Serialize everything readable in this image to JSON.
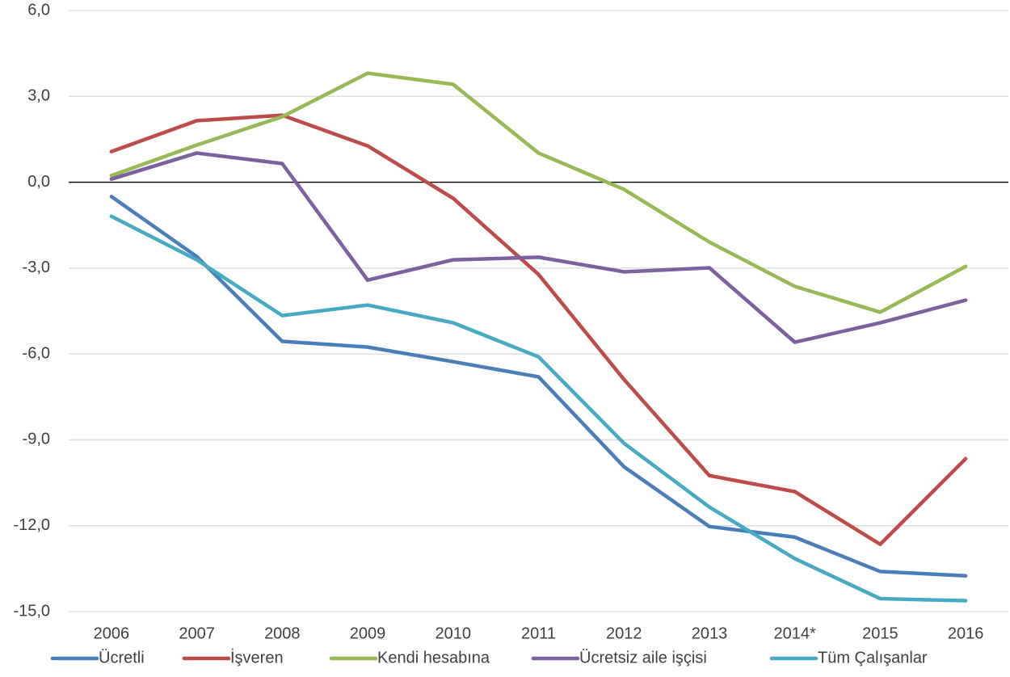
{
  "chart_data": {
    "type": "line",
    "categories": [
      "2006",
      "2007",
      "2008",
      "2009",
      "2010",
      "2011",
      "2012",
      "2013",
      "2014*",
      "2015",
      "2016"
    ],
    "series": [
      {
        "name": "Ücretli",
        "color": "#4a7ebb",
        "values": [
          -0.5,
          -2.6,
          -5.56,
          -5.76,
          -6.27,
          -6.8,
          -9.94,
          -12.03,
          -12.4,
          -13.6,
          -13.75
        ]
      },
      {
        "name": "İşveren",
        "color": "#be4b48",
        "values": [
          1.07,
          2.15,
          2.34,
          1.27,
          -0.56,
          -3.22,
          -6.89,
          -10.25,
          -10.81,
          -12.65,
          -9.66
        ]
      },
      {
        "name": "Kendi hesabına",
        "color": "#98b954",
        "values": [
          0.23,
          1.3,
          2.29,
          3.81,
          3.42,
          1.02,
          -0.25,
          -2.09,
          -3.64,
          -4.54,
          -2.94
        ]
      },
      {
        "name": "Ücretsiz aile işçisi",
        "color": "#7d60a0",
        "values": [
          0.11,
          1.02,
          0.65,
          -3.42,
          -2.71,
          -2.62,
          -3.13,
          -2.99,
          -5.59,
          -4.91,
          -4.12
        ]
      },
      {
        "name": "Tüm Çalışanlar",
        "color": "#46aac5",
        "values": [
          -1.19,
          -2.71,
          -4.66,
          -4.29,
          -4.91,
          -6.1,
          -9.12,
          -11.35,
          -13.15,
          -14.55,
          -14.62
        ]
      }
    ],
    "ylim": [
      -15,
      6
    ],
    "yticks": [
      {
        "value": -15,
        "label": "-15,0"
      },
      {
        "value": -12,
        "label": "-12,0"
      },
      {
        "value": -9,
        "label": "-9,0"
      },
      {
        "value": -6,
        "label": "-6,0"
      },
      {
        "value": -3,
        "label": "-3,0"
      },
      {
        "value": 0,
        "label": "0,0"
      },
      {
        "value": 3,
        "label": "3,0"
      },
      {
        "value": 6,
        "label": "6,0"
      }
    ],
    "grid": true,
    "legend": "bottom"
  }
}
